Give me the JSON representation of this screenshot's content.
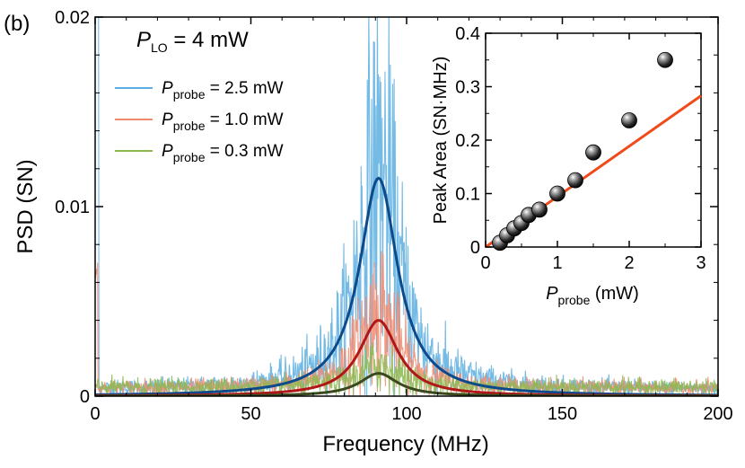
{
  "panel_label": "(b)",
  "chart_data": [
    {
      "type": "line",
      "title": "",
      "xlabel": "Frequency (MHz)",
      "ylabel": "PSD (SN)",
      "xlim": [
        0,
        200
      ],
      "ylim": [
        0,
        0.02
      ],
      "xticks": [
        "0",
        "50",
        "100",
        "150",
        "200"
      ],
      "yticks": [
        "0",
        "0.01",
        "0.02"
      ],
      "annotation": {
        "prefix": "P",
        "sub": "LO",
        "suffix": " = 4 mW"
      },
      "lorentzian_center_mhz": 91,
      "lorentzian_fwhm_mhz": 15,
      "noise_floor_psd": 0.0004,
      "series": [
        {
          "name": "Pprobe = 2.5 mW",
          "legend_prefix": "P",
          "legend_sub": "probe",
          "legend_suffix": " = 2.5 mW",
          "peak_psd": 0.0115,
          "noise_color": "#5aaee0",
          "fit_color": "#0d4a8c"
        },
        {
          "name": "Pprobe = 1.0 mW",
          "legend_prefix": "P",
          "legend_sub": "probe",
          "legend_suffix": " = 1.0 mW",
          "peak_psd": 0.004,
          "noise_color": "#f08a70",
          "fit_color": "#b01818"
        },
        {
          "name": "Pprobe = 0.3 mW",
          "legend_prefix": "P",
          "legend_sub": "probe",
          "legend_suffix": " = 0.3 mW",
          "peak_psd": 0.0012,
          "noise_color": "#8cb850",
          "fit_color": "#3a4a1e"
        }
      ]
    },
    {
      "type": "scatter",
      "title": "",
      "xlabel_prefix": "P",
      "xlabel_sub": "probe",
      "xlabel_suffix": " (mW)",
      "ylabel": "Peak Area (SN·MHz)",
      "xlim": [
        0,
        3
      ],
      "ylim": [
        0,
        0.4
      ],
      "xticks": [
        "0",
        "1",
        "2",
        "3"
      ],
      "yticks": [
        "0",
        "0.1",
        "0.2",
        "0.3",
        "0.4"
      ],
      "points": [
        {
          "x": 0.2,
          "y": 0.008
        },
        {
          "x": 0.3,
          "y": 0.022
        },
        {
          "x": 0.4,
          "y": 0.035
        },
        {
          "x": 0.5,
          "y": 0.045
        },
        {
          "x": 0.6,
          "y": 0.06
        },
        {
          "x": 0.75,
          "y": 0.07
        },
        {
          "x": 1.0,
          "y": 0.1
        },
        {
          "x": 1.25,
          "y": 0.125
        },
        {
          "x": 1.5,
          "y": 0.177
        },
        {
          "x": 2.0,
          "y": 0.237
        },
        {
          "x": 2.5,
          "y": 0.35
        }
      ],
      "fit_line": {
        "x": [
          0,
          3
        ],
        "y": [
          0,
          0.283
        ],
        "color": "#f04a1a"
      }
    }
  ]
}
